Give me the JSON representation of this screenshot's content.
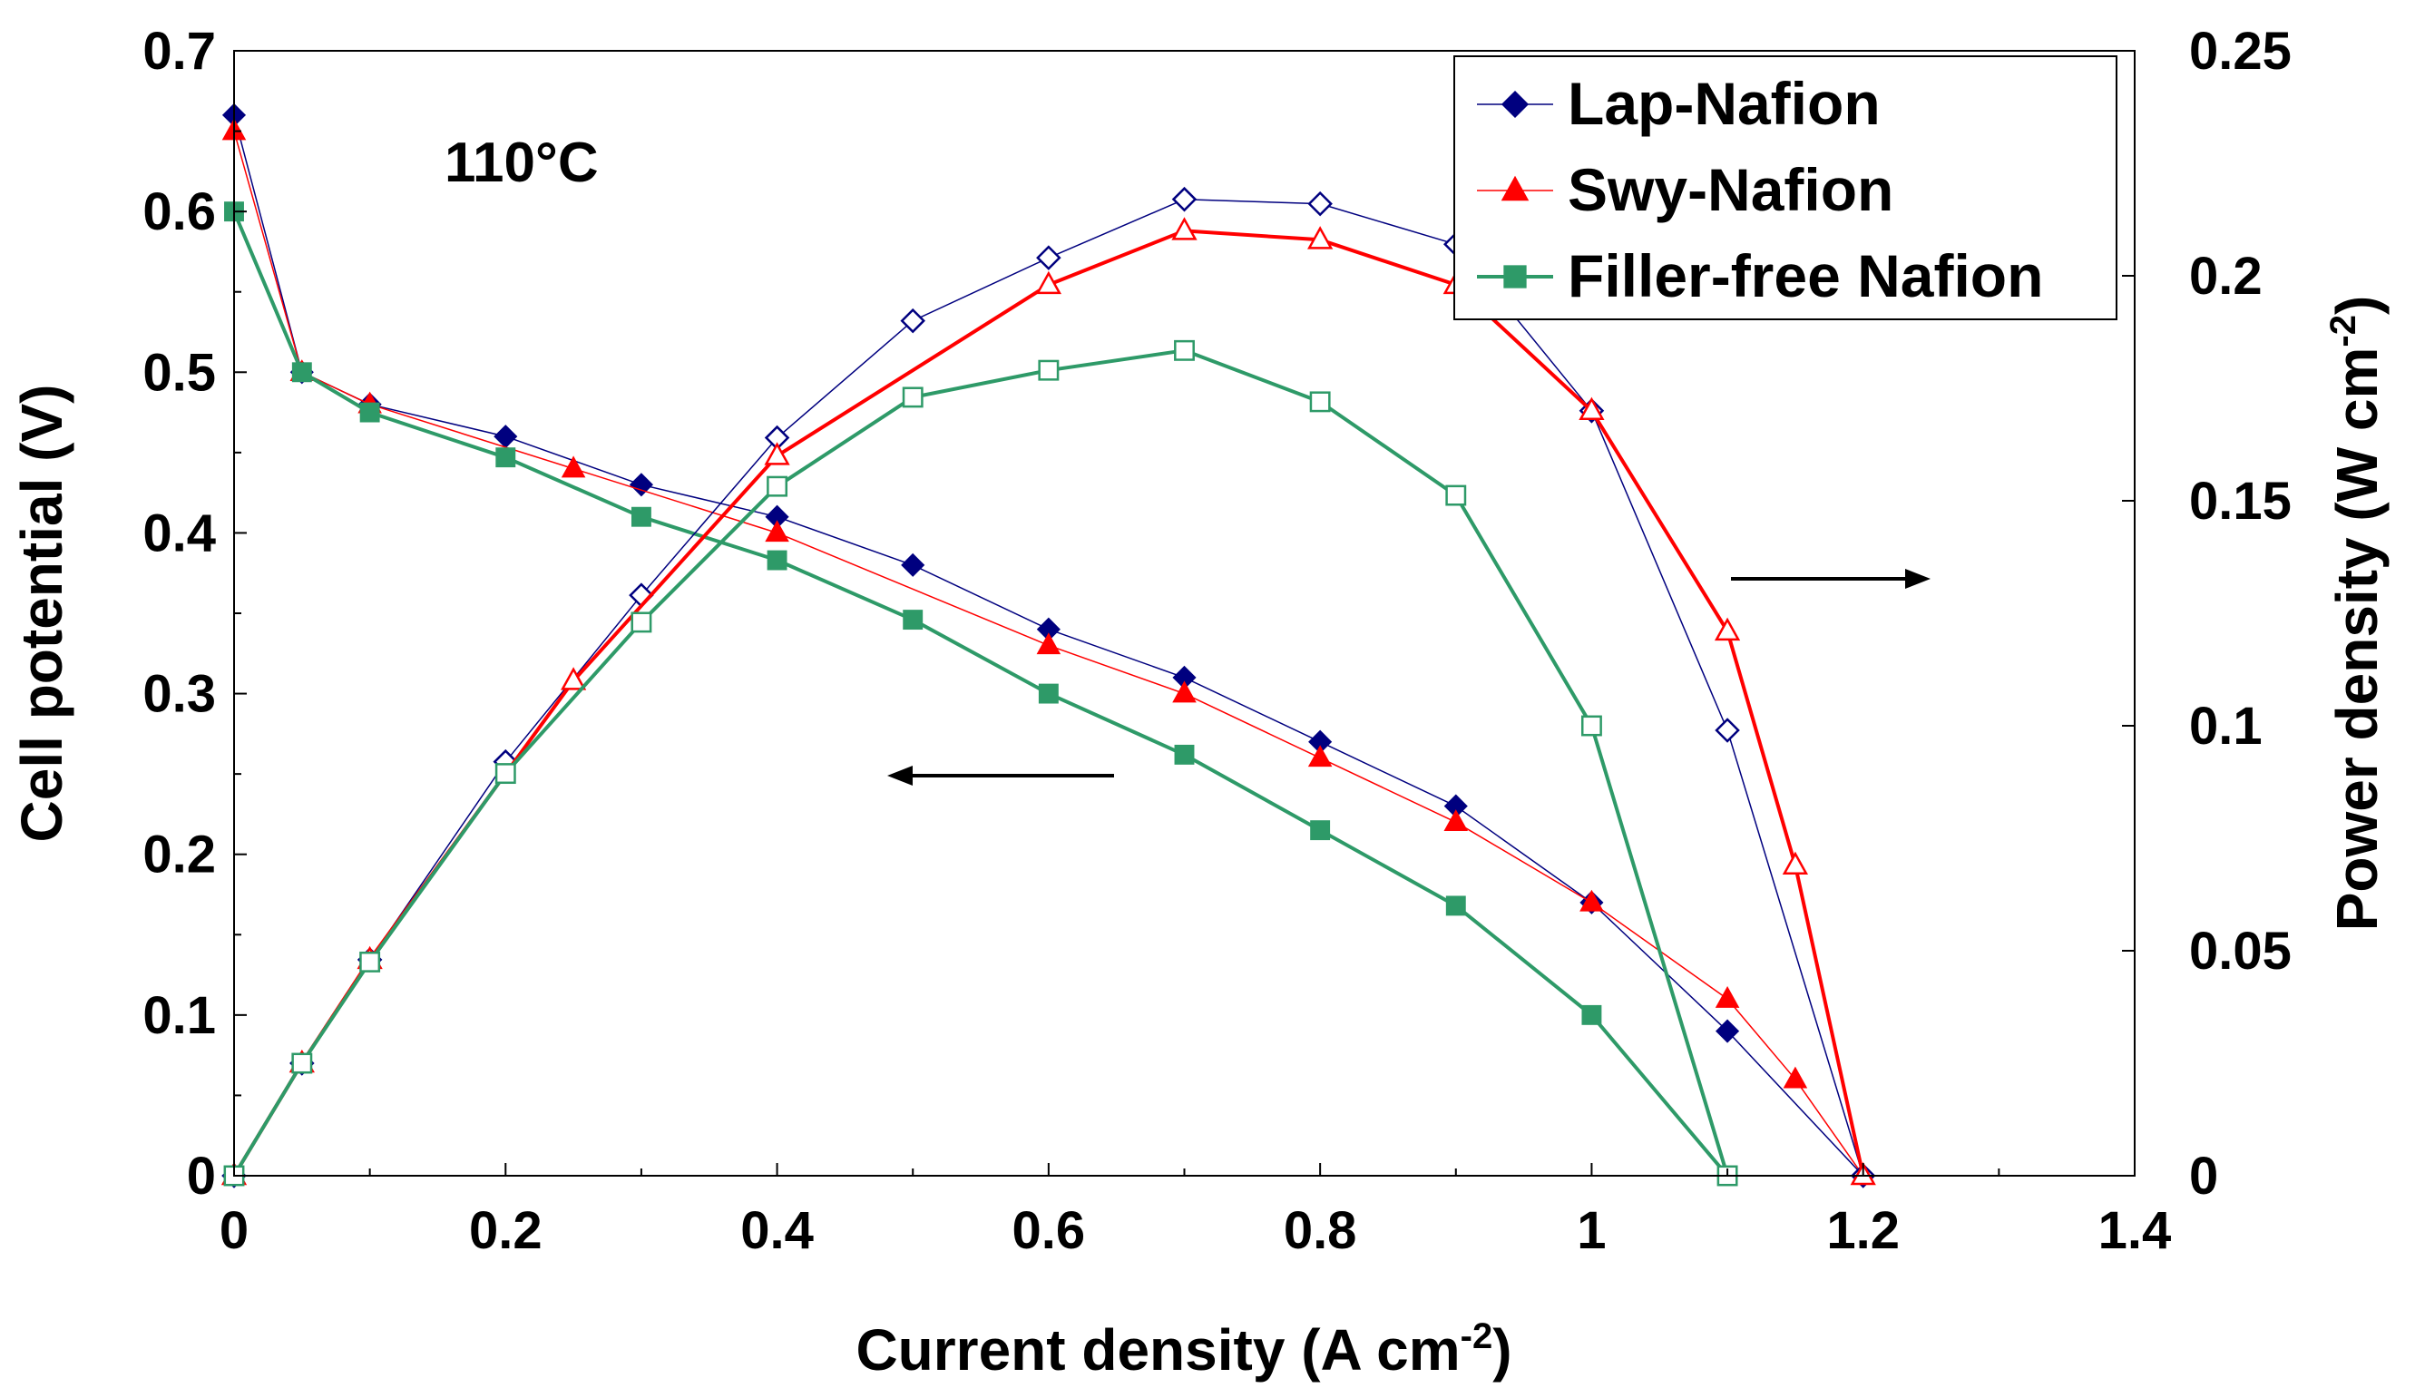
{
  "chart_data": {
    "type": "line",
    "annotation": "110°C",
    "xlabel": "Current density (A cm",
    "xlabel_sup": "-2",
    "xlabel_end": ")",
    "ylabel": "Cell potential (V)",
    "y2label": "Power density (W cm",
    "y2label_sup": "-2",
    "y2label_end": ")",
    "xlim": [
      0,
      1.4
    ],
    "ylim": [
      0,
      0.7
    ],
    "y2lim": [
      0,
      0.25
    ],
    "xticks": [
      0,
      0.2,
      0.4,
      0.6,
      0.8,
      1,
      1.2,
      1.4
    ],
    "xtick_labels": [
      "0",
      "0.2",
      "0.4",
      "0.6",
      "0.8",
      "1",
      "1.2",
      "1.4"
    ],
    "yticks": [
      0,
      0.1,
      0.2,
      0.3,
      0.4,
      0.5,
      0.6,
      0.7
    ],
    "ytick_labels": [
      "0",
      "0.1",
      "0.2",
      "0.3",
      "0.4",
      "0.5",
      "0.6",
      "0.7"
    ],
    "y2ticks": [
      0,
      0.05,
      0.1,
      0.15,
      0.2,
      0.25
    ],
    "y2tick_labels": [
      "0",
      "0.05",
      "0.1",
      "0.15",
      "0.2",
      "0.25"
    ],
    "legend": {
      "position": "top-right",
      "entries": [
        "Lap-Nafion",
        "Swy-Nafion",
        "Filler-free Nafion"
      ]
    },
    "arrows": [
      {
        "direction": "left",
        "meaning": "Cell potential axis"
      },
      {
        "direction": "right",
        "meaning": "Power density axis"
      }
    ],
    "series": [
      {
        "name": "Lap-Nafion",
        "key": "lap",
        "quantity": "Cell potential",
        "axis": "left",
        "color": "#00007f",
        "marker": "diamond",
        "filled": true,
        "line_width": 1.5,
        "x": [
          0,
          0.05,
          0.1,
          0.2,
          0.3,
          0.4,
          0.5,
          0.6,
          0.7,
          0.8,
          0.9,
          1.0,
          1.1,
          1.2
        ],
        "y": [
          0.66,
          0.5,
          0.48,
          0.46,
          0.43,
          0.41,
          0.38,
          0.34,
          0.31,
          0.27,
          0.23,
          0.17,
          0.09,
          0
        ]
      },
      {
        "name": "Swy-Nafion",
        "key": "swy",
        "quantity": "Cell potential",
        "axis": "left",
        "color": "#ff0000",
        "marker": "triangle",
        "filled": true,
        "line_width": 1.5,
        "x": [
          0,
          0.05,
          0.1,
          0.25,
          0.4,
          0.6,
          0.7,
          0.8,
          0.9,
          1.0,
          1.1,
          1.15,
          1.2
        ],
        "y": [
          0.65,
          0.5,
          0.48,
          0.44,
          0.4,
          0.33,
          0.3,
          0.26,
          0.22,
          0.17,
          0.11,
          0.06,
          0
        ]
      },
      {
        "name": "Filler-free Nafion",
        "key": "free",
        "quantity": "Cell potential",
        "axis": "left",
        "color": "#2e9a68",
        "marker": "square",
        "filled": true,
        "line_width": 4,
        "x": [
          0,
          0.05,
          0.1,
          0.2,
          0.3,
          0.4,
          0.5,
          0.6,
          0.7,
          0.8,
          0.9,
          1.0,
          1.1
        ],
        "y": [
          0.6,
          0.5,
          0.475,
          0.447,
          0.41,
          0.383,
          0.346,
          0.3,
          0.262,
          0.215,
          0.168,
          0.1,
          0
        ]
      },
      {
        "name": "Lap-Nafion",
        "key": "lap_power",
        "quantity": "Power density",
        "axis": "right",
        "color": "#00007f",
        "marker": "diamond",
        "filled": false,
        "line_width": 1.5,
        "x": [
          0,
          0.05,
          0.1,
          0.2,
          0.3,
          0.4,
          0.5,
          0.6,
          0.7,
          0.8,
          0.9,
          1.0,
          1.1,
          1.2
        ],
        "y": [
          0,
          0.025,
          0.048,
          0.092,
          0.129,
          0.164,
          0.19,
          0.204,
          0.217,
          0.216,
          0.207,
          0.17,
          0.099,
          0
        ]
      },
      {
        "name": "Swy-Nafion",
        "key": "swy_power",
        "quantity": "Power density",
        "axis": "right",
        "color": "#ff0000",
        "marker": "triangle",
        "filled": false,
        "line_width": 4,
        "x": [
          0,
          0.05,
          0.1,
          0.25,
          0.4,
          0.6,
          0.7,
          0.8,
          0.9,
          1.0,
          1.1,
          1.15,
          1.2
        ],
        "y": [
          0,
          0.025,
          0.048,
          0.11,
          0.16,
          0.198,
          0.21,
          0.208,
          0.198,
          0.17,
          0.121,
          0.069,
          0
        ]
      },
      {
        "name": "Filler-free Nafion",
        "key": "free_power",
        "quantity": "Power density",
        "axis": "right",
        "color": "#2e9a68",
        "marker": "square",
        "filled": false,
        "line_width": 4,
        "x": [
          0,
          0.05,
          0.1,
          0.2,
          0.3,
          0.4,
          0.5,
          0.6,
          0.7,
          0.8,
          0.9,
          1.0,
          1.1
        ],
        "y": [
          0,
          0.025,
          0.0475,
          0.0894,
          0.123,
          0.1532,
          0.173,
          0.179,
          0.1834,
          0.172,
          0.1512,
          0.1,
          0
        ]
      }
    ]
  }
}
